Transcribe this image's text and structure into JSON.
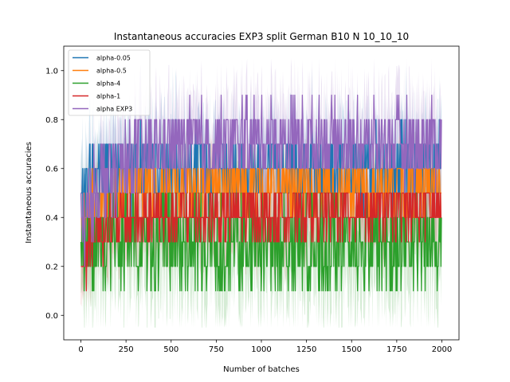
{
  "chart_data": {
    "type": "line",
    "title": "Instantaneous accuracies EXP3 split German B10 N 10_10_10",
    "xlabel": "Number of batches",
    "ylabel": "Instantaneous accuracies",
    "xlim": [
      -95,
      2095
    ],
    "ylim": [
      -0.1,
      1.1
    ],
    "x_ticks": [
      0,
      250,
      500,
      750,
      1000,
      1250,
      1500,
      1750,
      2000
    ],
    "y_ticks": [
      0.0,
      0.2,
      0.4,
      0.6,
      0.8,
      1.0
    ],
    "y_tick_labels": [
      "0.0",
      "0.2",
      "0.4",
      "0.6",
      "0.8",
      "1.0"
    ],
    "grid": false,
    "legend_position": "top-left",
    "x_range": [
      0,
      2000
    ],
    "series": [
      {
        "name": "alpha-0.05",
        "color": "#1f77b4",
        "profile": [
          [
            0,
            0.45
          ],
          [
            50,
            0.55
          ],
          [
            120,
            0.6
          ],
          [
            250,
            0.6
          ],
          [
            2000,
            0.6
          ]
        ],
        "spread": 0.1,
        "band": 0.15
      },
      {
        "name": "alpha-0.5",
        "color": "#ff7f0e",
        "profile": [
          [
            0,
            0.35
          ],
          [
            100,
            0.5
          ],
          [
            300,
            0.5
          ],
          [
            1000,
            0.52
          ],
          [
            2000,
            0.53
          ]
        ],
        "spread": 0.07,
        "band": 0.1
      },
      {
        "name": "alpha-4",
        "color": "#2ca02c",
        "profile": [
          [
            0,
            0.25
          ],
          [
            100,
            0.3
          ],
          [
            400,
            0.3
          ],
          [
            1000,
            0.29
          ],
          [
            2000,
            0.3
          ]
        ],
        "spread": 0.12,
        "band": 0.2
      },
      {
        "name": "alpha-1",
        "color": "#d62728",
        "profile": [
          [
            0,
            0.2
          ],
          [
            80,
            0.35
          ],
          [
            300,
            0.4
          ],
          [
            1000,
            0.42
          ],
          [
            2000,
            0.44
          ]
        ],
        "spread": 0.07,
        "band": 0.12
      },
      {
        "name": "alpha EXP3",
        "color": "#9467bd",
        "profile": [
          [
            0,
            0.35
          ],
          [
            100,
            0.55
          ],
          [
            400,
            0.68
          ],
          [
            1000,
            0.72
          ],
          [
            2000,
            0.7
          ]
        ],
        "spread": 0.1,
        "band": 0.15
      }
    ]
  }
}
